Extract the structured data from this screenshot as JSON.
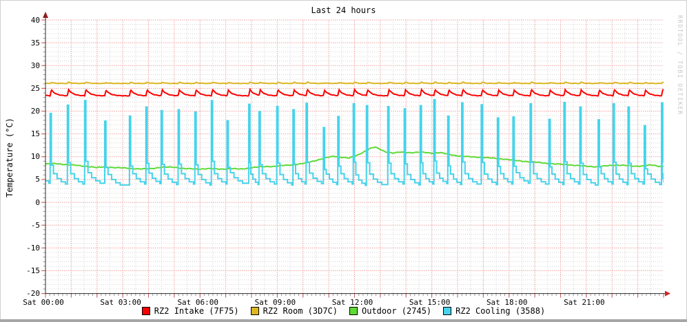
{
  "watermark": "RRDTOOL / TOBI OETIKER",
  "window": {
    "border_color": "#cfcfcf",
    "bottom_bar_color": "#a6a6a6"
  },
  "chart_data": {
    "type": "line",
    "title": "Last 24 hours",
    "ylabel": "Temperature (°C)",
    "xlim_hours": [
      0,
      24
    ],
    "ylim": [
      -20,
      40
    ],
    "legend_position": "bottom",
    "grid": {
      "x_major_hours": 1,
      "x_minor_hours": 0.5,
      "y_major": 5,
      "y_minor": 1,
      "major_color": "#f09f9f",
      "minor_color": "#d2d2d2",
      "axis_color": "#2a2a2a",
      "arrow_color": "#c02020"
    },
    "y_ticks": [
      40,
      35,
      30,
      25,
      20,
      15,
      10,
      5,
      0,
      -5,
      -10,
      -15,
      -20
    ],
    "x_ticks": [
      {
        "h": 0,
        "label": "Sat 00:00"
      },
      {
        "h": 3,
        "label": "Sat 03:00"
      },
      {
        "h": 6,
        "label": "Sat 06:00"
      },
      {
        "h": 9,
        "label": "Sat 09:00"
      },
      {
        "h": 12,
        "label": "Sat 12:00"
      },
      {
        "h": 15,
        "label": "Sat 15:00"
      },
      {
        "h": 18,
        "label": "Sat 18:00"
      },
      {
        "h": 21,
        "label": "Sat 21:00"
      }
    ],
    "series": [
      {
        "id": "intake",
        "name": "RZ2 Intake (7F75)",
        "color": "#fa0000",
        "style": "bump",
        "baseline": 23.35,
        "bump_amp_base": 1.18,
        "bump_amp_per_peak": 0.03,
        "bump_rise_h": 0.05,
        "bump_tau_h": 0.17
      },
      {
        "id": "room",
        "name": "RZ2 Room (3D7C)",
        "color": "#ddb621",
        "style": "bump",
        "baseline": 26.08,
        "bump_amp_base": 0.12,
        "bump_amp_per_peak": 0.028,
        "bump_rise_h": 0.05,
        "bump_tau_h": 0.1
      },
      {
        "id": "outdoor",
        "name": "Outdoor (2745)",
        "color": "#5fd935",
        "style": "points",
        "points": [
          [
            0,
            8.4
          ],
          [
            0.4,
            8.5
          ],
          [
            0.8,
            8.3
          ],
          [
            1.2,
            8.1
          ],
          [
            1.6,
            7.9
          ],
          [
            2.0,
            7.6
          ],
          [
            2.3,
            7.8
          ],
          [
            2.7,
            7.6
          ],
          [
            3.2,
            7.5
          ],
          [
            3.7,
            7.3
          ],
          [
            4.1,
            7.4
          ],
          [
            4.5,
            7.7
          ],
          [
            5.0,
            7.7
          ],
          [
            5.4,
            7.4
          ],
          [
            5.9,
            7.3
          ],
          [
            6.3,
            7.4
          ],
          [
            6.8,
            7.3
          ],
          [
            7.2,
            7.4
          ],
          [
            7.6,
            7.3
          ],
          [
            8.0,
            7.6
          ],
          [
            8.4,
            7.8
          ],
          [
            8.9,
            7.9
          ],
          [
            9.3,
            8.1
          ],
          [
            9.7,
            8.3
          ],
          [
            10.1,
            8.6
          ],
          [
            10.5,
            9.2
          ],
          [
            10.9,
            9.8
          ],
          [
            11.2,
            10.1
          ],
          [
            11.5,
            9.9
          ],
          [
            11.8,
            9.7
          ],
          [
            12.1,
            10.3
          ],
          [
            12.4,
            11.2
          ],
          [
            12.6,
            11.8
          ],
          [
            12.8,
            12.1
          ],
          [
            13.0,
            11.6
          ],
          [
            13.2,
            11.1
          ],
          [
            13.5,
            10.8
          ],
          [
            13.8,
            11.0
          ],
          [
            14.2,
            10.9
          ],
          [
            14.6,
            11.0
          ],
          [
            15.0,
            10.8
          ],
          [
            15.3,
            10.9
          ],
          [
            15.7,
            10.5
          ],
          [
            16.0,
            10.2
          ],
          [
            16.4,
            10.0
          ],
          [
            16.9,
            9.9
          ],
          [
            17.3,
            9.7
          ],
          [
            17.8,
            9.5
          ],
          [
            18.2,
            9.2
          ],
          [
            18.6,
            9.0
          ],
          [
            19.0,
            8.8
          ],
          [
            19.4,
            8.6
          ],
          [
            19.8,
            8.4
          ],
          [
            20.2,
            8.3
          ],
          [
            20.6,
            8.1
          ],
          [
            21.0,
            7.9
          ],
          [
            21.4,
            7.8
          ],
          [
            21.8,
            8.0
          ],
          [
            22.2,
            8.2
          ],
          [
            22.5,
            8.1
          ],
          [
            22.9,
            7.9
          ],
          [
            23.2,
            8.0
          ],
          [
            23.5,
            8.2
          ],
          [
            23.8,
            7.9
          ],
          [
            24.0,
            7.9
          ]
        ]
      },
      {
        "id": "cooling",
        "name": "RZ2 Cooling (3588)",
        "color": "#46d3ec",
        "style": "cycles"
      }
    ],
    "cooling_cycles": [
      [
        0.18,
        19.5,
        4.0
      ],
      [
        0.85,
        21.3,
        4.0
      ],
      [
        1.52,
        22.3,
        4.2
      ],
      [
        2.3,
        17.8,
        3.8
      ],
      [
        3.26,
        18.9,
        4.0
      ],
      [
        3.9,
        20.9,
        4.1
      ],
      [
        4.49,
        20.1,
        3.9
      ],
      [
        5.15,
        20.3,
        4.0
      ],
      [
        5.8,
        19.8,
        3.8
      ],
      [
        6.44,
        22.3,
        4.0
      ],
      [
        7.05,
        17.9,
        4.2
      ],
      [
        7.89,
        21.5,
        3.9
      ],
      [
        8.29,
        19.9,
        4.0
      ],
      [
        8.98,
        21.0,
        3.8
      ],
      [
        9.61,
        20.3,
        4.0
      ],
      [
        10.12,
        21.7,
        4.1
      ],
      [
        10.79,
        16.4,
        3.9
      ],
      [
        11.35,
        18.8,
        4.0
      ],
      [
        11.95,
        21.6,
        3.7
      ],
      [
        12.46,
        21.2,
        3.9
      ],
      [
        13.29,
        21.0,
        4.0
      ],
      [
        13.93,
        20.5,
        3.8
      ],
      [
        14.55,
        21.2,
        4.0
      ],
      [
        15.08,
        22.5,
        4.1
      ],
      [
        15.62,
        18.9,
        3.9
      ],
      [
        16.16,
        21.8,
        4.0
      ],
      [
        16.92,
        21.4,
        3.9
      ],
      [
        17.55,
        18.5,
        4.0
      ],
      [
        18.15,
        18.7,
        4.2
      ],
      [
        18.82,
        21.6,
        4.0
      ],
      [
        19.55,
        18.2,
        3.9
      ],
      [
        20.13,
        21.9,
        4.0
      ],
      [
        20.75,
        20.9,
        3.8
      ],
      [
        21.46,
        18.1,
        4.0
      ],
      [
        22.04,
        21.6,
        3.9
      ],
      [
        22.62,
        20.9,
        4.0
      ],
      [
        23.25,
        16.8,
        3.9
      ],
      [
        23.92,
        21.8,
        4.0
      ]
    ]
  }
}
